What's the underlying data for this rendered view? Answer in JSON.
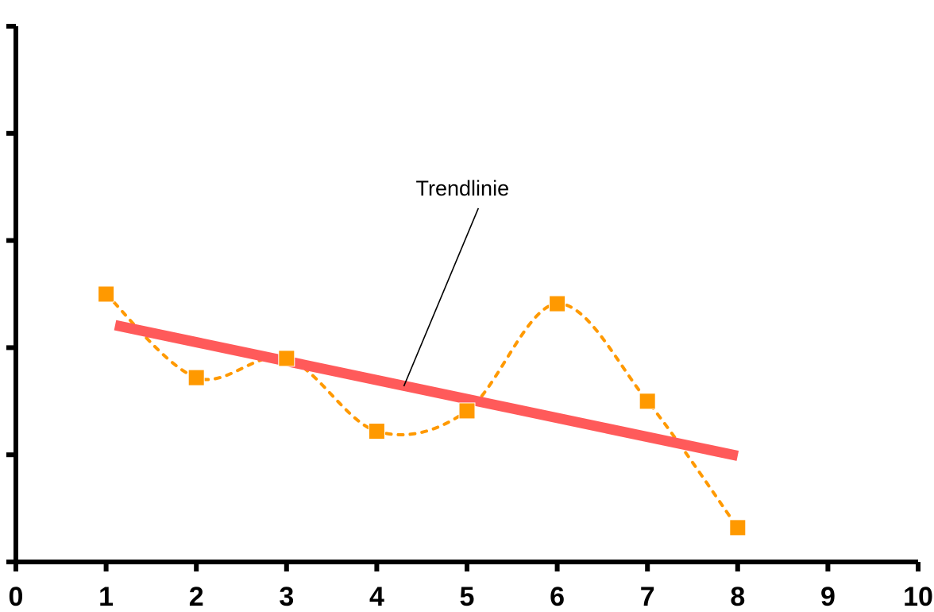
{
  "chart_data": {
    "type": "line",
    "title": "",
    "xlabel": "",
    "ylabel": "",
    "x_ticks": [
      "0",
      "1",
      "2",
      "3",
      "4",
      "5",
      "6",
      "7",
      "8",
      "9",
      "10"
    ],
    "xlim": [
      0,
      10
    ],
    "ylim": [
      0,
      5
    ],
    "y_tick_values": [
      0,
      1,
      2,
      3,
      4,
      5
    ],
    "y_tick_labels_shown": false,
    "grid": false,
    "legend": "none",
    "series": [
      {
        "x": [
          1,
          2,
          3,
          4,
          5,
          6,
          7,
          8
        ],
        "y": [
          2.5,
          1.72,
          1.9,
          1.22,
          1.41,
          2.41,
          1.5,
          0.32
        ],
        "marker": "square",
        "line_style": "dotted-smooth",
        "color": "#FF9900"
      }
    ],
    "trendline": {
      "x": [
        1.1,
        8.0
      ],
      "y": [
        2.21,
        0.99
      ],
      "color": "#FF5A5A"
    },
    "annotations": [
      {
        "text": "Trendlinie",
        "text_x": 4.95,
        "text_y": 3.42,
        "target_x": 4.3,
        "target_y": 1.64
      }
    ]
  }
}
